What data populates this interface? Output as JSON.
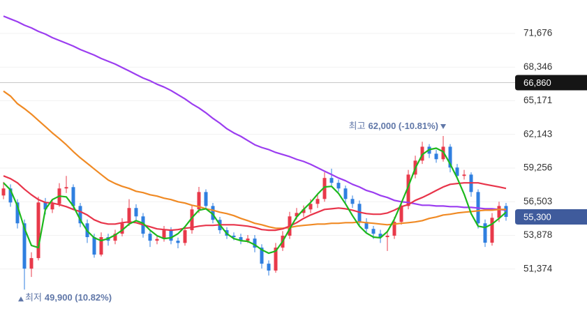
{
  "chart_data": {
    "type": "candlestick",
    "log_scale": true,
    "grid": true,
    "up_color": "#e8394a",
    "down_color": "#2f7fe0",
    "ylim": [
      48170,
      75150
    ],
    "yticks": [
      {
        "value": 71676,
        "label": "71,676"
      },
      {
        "value": 68346,
        "label": "68,346"
      },
      {
        "value": 65171,
        "label": "65,171"
      },
      {
        "value": 62143,
        "label": "62,143"
      },
      {
        "value": 59256,
        "label": "59,256"
      },
      {
        "value": 56503,
        "label": "56,503"
      },
      {
        "value": 53878,
        "label": "53,878"
      },
      {
        "value": 51374,
        "label": "51,374"
      }
    ],
    "open": [
      57000,
      57570,
      56440,
      54800,
      51400,
      52170,
      56440,
      55890,
      56330,
      57570,
      57680,
      56160,
      54800,
      53740,
      52430,
      53740,
      53470,
      54000,
      54800,
      56000,
      55340,
      54000,
      53470,
      53600,
      54270,
      53470,
      53300,
      54270,
      55890,
      57280,
      56160,
      55070,
      54270,
      53850,
      53740,
      53470,
      53630,
      52950,
      51760,
      51260,
      52950,
      53850,
      55340,
      55610,
      55890,
      56330,
      56720,
      58430,
      58030,
      57570,
      56720,
      56330,
      54910,
      54370,
      54000,
      53740,
      53850,
      54910,
      56160,
      58710,
      59880,
      61070,
      60470,
      60000,
      61070,
      59300,
      58600,
      58710,
      57280,
      54800,
      53320,
      55230,
      56160
    ],
    "high": [
      58100,
      57900,
      56700,
      55100,
      52600,
      56900,
      56800,
      56700,
      58000,
      58600,
      57900,
      56400,
      55100,
      54000,
      54100,
      54000,
      54300,
      55200,
      56700,
      56300,
      55600,
      54300,
      53900,
      54600,
      54500,
      53700,
      54500,
      56200,
      57700,
      57500,
      56400,
      55300,
      54500,
      54100,
      54000,
      53900,
      53900,
      53200,
      52000,
      53300,
      54200,
      55700,
      56000,
      56200,
      56700,
      57100,
      58900,
      59200,
      58300,
      57800,
      57000,
      56600,
      55200,
      54600,
      54300,
      54100,
      55300,
      56500,
      59100,
      60300,
      61500,
      61300,
      60800,
      62000,
      61300,
      59600,
      59100,
      58900,
      57500,
      55100,
      55600,
      56500,
      56400
    ],
    "low": [
      56700,
      56100,
      54400,
      49900,
      50800,
      52000,
      55500,
      55600,
      56100,
      57200,
      55900,
      54500,
      53300,
      52200,
      52300,
      53100,
      53200,
      53800,
      54600,
      55000,
      53700,
      53000,
      53200,
      53400,
      53200,
      52900,
      53100,
      54000,
      55600,
      55900,
      54800,
      54000,
      53600,
      53500,
      53200,
      53300,
      52600,
      51400,
      50900,
      51100,
      52700,
      53600,
      55100,
      55300,
      55600,
      56000,
      56500,
      57800,
      57300,
      56400,
      56000,
      54600,
      54000,
      53600,
      53300,
      52700,
      53600,
      54700,
      55900,
      58400,
      59600,
      60100,
      59700,
      59800,
      58900,
      58300,
      58300,
      56900,
      54400,
      53000,
      53100,
      54900,
      55000
    ],
    "close": [
      57570,
      56440,
      54800,
      51400,
      52170,
      56440,
      55890,
      56330,
      57570,
      57680,
      56160,
      54800,
      53740,
      52430,
      53740,
      53470,
      54000,
      54800,
      56000,
      55340,
      54000,
      53470,
      53600,
      54270,
      53470,
      53300,
      54270,
      55890,
      57280,
      56160,
      55070,
      54270,
      53850,
      53740,
      53470,
      53630,
      52950,
      51760,
      51260,
      52950,
      53850,
      55340,
      55610,
      55890,
      56330,
      56720,
      58430,
      58030,
      57570,
      56720,
      56330,
      54910,
      54370,
      54000,
      53740,
      53850,
      54910,
      56160,
      58710,
      59880,
      61070,
      60470,
      60000,
      61070,
      59300,
      58600,
      58710,
      57280,
      54800,
      53320,
      55230,
      56160,
      55300
    ],
    "series": [
      {
        "color": "#9b3df0",
        "values": [
          73460,
          73160,
          72880,
          72520,
          72240,
          71890,
          71610,
          71250,
          70970,
          70690,
          70410,
          70070,
          69790,
          69520,
          69180,
          68910,
          68640,
          68300,
          67970,
          67630,
          67300,
          67040,
          66710,
          66450,
          66120,
          65730,
          65340,
          64890,
          64510,
          64070,
          63570,
          63140,
          62640,
          62270,
          61970,
          61600,
          61240,
          61000,
          60820,
          60580,
          60400,
          60220,
          59990,
          59810,
          59570,
          59280,
          58990,
          58710,
          58430,
          58200,
          57910,
          57690,
          57410,
          57240,
          57000,
          56840,
          56610,
          56500,
          56440,
          56330,
          56220,
          56220,
          56160,
          56160,
          56110,
          56110,
          56050,
          56050,
          56000,
          55940,
          55940,
          55890,
          55830
        ]
      },
      {
        "color": "#f08a24",
        "values": [
          66060,
          65600,
          64900,
          64450,
          63950,
          63380,
          62830,
          62270,
          61770,
          61240,
          60650,
          60120,
          59650,
          59180,
          58710,
          58260,
          57970,
          57740,
          57570,
          57340,
          57230,
          57060,
          56950,
          56780,
          56670,
          56500,
          56390,
          56220,
          56110,
          55940,
          55830,
          55670,
          55560,
          55400,
          55180,
          55010,
          54800,
          54690,
          54530,
          54420,
          54420,
          54480,
          54580,
          54640,
          54690,
          54740,
          54740,
          54800,
          54800,
          54850,
          54850,
          54910,
          54850,
          54800,
          54740,
          54690,
          54740,
          54800,
          54850,
          54910,
          55010,
          55180,
          55290,
          55450,
          55510,
          55610,
          55670,
          55720,
          55780,
          55830,
          55830,
          55890,
          55890
        ]
      },
      {
        "color": "#e8344a",
        "values": [
          58600,
          58370,
          58030,
          57510,
          57060,
          56670,
          56440,
          56390,
          56270,
          56110,
          55890,
          55720,
          55450,
          55070,
          54850,
          54740,
          54740,
          54850,
          54910,
          54850,
          54690,
          54530,
          54370,
          54320,
          54270,
          54320,
          54420,
          54480,
          54580,
          54640,
          54640,
          54690,
          54690,
          54690,
          54640,
          54580,
          54480,
          54320,
          54270,
          54270,
          54370,
          54580,
          54850,
          55180,
          55450,
          55670,
          55890,
          55940,
          56000,
          55940,
          55830,
          55670,
          55560,
          55510,
          55510,
          55610,
          55830,
          56110,
          56270,
          56610,
          56840,
          57110,
          57410,
          57690,
          57910,
          57970,
          58030,
          58030,
          58030,
          57910,
          57800,
          57690,
          57570
        ]
      },
      {
        "color": "#1db81d",
        "values": [
          58030,
          57450,
          56160,
          54420,
          53110,
          52950,
          55890,
          56670,
          56950,
          56890,
          56160,
          55070,
          54210,
          53690,
          53470,
          53630,
          53900,
          54270,
          54740,
          55010,
          54800,
          54270,
          53850,
          53630,
          53690,
          54000,
          54530,
          55230,
          55830,
          55940,
          55510,
          54690,
          54000,
          53630,
          53470,
          53420,
          53160,
          52790,
          52530,
          52690,
          53420,
          54370,
          55290,
          55890,
          56440,
          57110,
          57690,
          57740,
          57170,
          56330,
          55400,
          54580,
          54050,
          53740,
          53690,
          54160,
          55120,
          56390,
          57740,
          59240,
          60400,
          60820,
          60940,
          60640,
          59590,
          58430,
          57110,
          55560,
          54580,
          54480,
          54740,
          55180,
          55670
        ]
      }
    ],
    "annotations": [
      {
        "label": "최고",
        "text": "62,000 (-10.81%)",
        "value": 62000
      },
      {
        "label": "최저",
        "text": "49,900 (10.82%)",
        "value": 49900
      }
    ],
    "price_labels": [
      {
        "value": 66860,
        "label": "66,860",
        "color": "#151515"
      },
      {
        "value": 55300,
        "label": "55,300",
        "color": "#3f5b9c"
      }
    ]
  }
}
